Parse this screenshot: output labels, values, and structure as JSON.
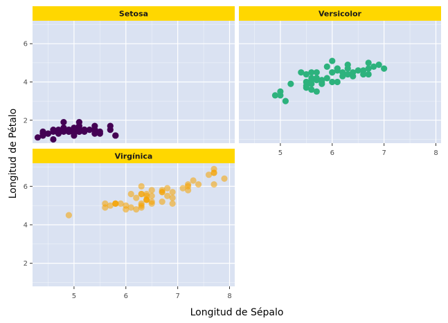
{
  "chart_data": {
    "type": "scatter",
    "xlabel": "Longitud de Sépalo",
    "ylabel": "Longitud de Pétalo",
    "xlim": [
      4.2,
      8.1
    ],
    "ylim": [
      0.8,
      7.2
    ],
    "x_ticks": [
      5,
      6,
      7,
      8
    ],
    "y_ticks": [
      2,
      4,
      6
    ],
    "grid": true,
    "legend": "none",
    "facets": [
      {
        "label": "Setosa",
        "color": "#440154",
        "opacity": 1.0,
        "points": [
          [
            4.3,
            1.1
          ],
          [
            4.4,
            1.3
          ],
          [
            4.4,
            1.4
          ],
          [
            4.5,
            1.3
          ],
          [
            4.6,
            1.4
          ],
          [
            4.6,
            1.0
          ],
          [
            4.7,
            1.5
          ],
          [
            4.7,
            1.3
          ],
          [
            4.8,
            1.6
          ],
          [
            4.8,
            1.4
          ],
          [
            4.8,
            1.9
          ],
          [
            4.8,
            1.6
          ],
          [
            4.9,
            1.4
          ],
          [
            4.9,
            1.5
          ],
          [
            4.9,
            1.5
          ],
          [
            5.0,
            1.4
          ],
          [
            5.0,
            1.5
          ],
          [
            5.0,
            1.2
          ],
          [
            5.0,
            1.3
          ],
          [
            5.0,
            1.6
          ],
          [
            5.0,
            1.4
          ],
          [
            5.0,
            1.3
          ],
          [
            5.0,
            1.6
          ],
          [
            5.1,
            1.4
          ],
          [
            5.1,
            1.5
          ],
          [
            5.1,
            1.5
          ],
          [
            5.1,
            1.4
          ],
          [
            5.1,
            1.7
          ],
          [
            5.1,
            1.9
          ],
          [
            5.1,
            1.5
          ],
          [
            5.2,
            1.5
          ],
          [
            5.2,
            1.4
          ],
          [
            5.2,
            1.5
          ],
          [
            5.3,
            1.5
          ],
          [
            5.4,
            1.7
          ],
          [
            5.4,
            1.5
          ],
          [
            5.4,
            1.3
          ],
          [
            5.4,
            1.5
          ],
          [
            5.4,
            1.5
          ],
          [
            5.5,
            1.4
          ],
          [
            5.5,
            1.3
          ],
          [
            5.7,
            1.5
          ],
          [
            5.7,
            1.7
          ],
          [
            5.8,
            1.2
          ],
          [
            5.8,
            1.2
          ],
          [
            4.6,
            1.5
          ],
          [
            4.9,
            1.4
          ],
          [
            5.2,
            1.5
          ],
          [
            4.5,
            1.3
          ],
          [
            4.4,
            1.2
          ]
        ]
      },
      {
        "label": "Versicolor",
        "color": "#2db27d",
        "opacity": 1.0,
        "points": [
          [
            4.9,
            3.3
          ],
          [
            5.0,
            3.5
          ],
          [
            5.0,
            3.3
          ],
          [
            5.1,
            3.0
          ],
          [
            5.2,
            3.9
          ],
          [
            5.4,
            4.5
          ],
          [
            5.5,
            4.0
          ],
          [
            5.5,
            3.8
          ],
          [
            5.5,
            4.4
          ],
          [
            5.5,
            4.0
          ],
          [
            5.5,
            3.7
          ],
          [
            5.6,
            3.6
          ],
          [
            5.6,
            4.5
          ],
          [
            5.6,
            4.2
          ],
          [
            5.6,
            3.9
          ],
          [
            5.6,
            4.1
          ],
          [
            5.7,
            4.5
          ],
          [
            5.7,
            3.5
          ],
          [
            5.7,
            4.2
          ],
          [
            5.7,
            4.2
          ],
          [
            5.7,
            4.1
          ],
          [
            5.8,
            4.1
          ],
          [
            5.8,
            3.9
          ],
          [
            5.8,
            4.0
          ],
          [
            5.9,
            4.8
          ],
          [
            5.9,
            4.2
          ],
          [
            6.0,
            5.1
          ],
          [
            6.0,
            4.5
          ],
          [
            6.0,
            4.0
          ],
          [
            6.0,
            4.5
          ],
          [
            6.1,
            4.7
          ],
          [
            6.1,
            4.0
          ],
          [
            6.1,
            4.7
          ],
          [
            6.1,
            4.6
          ],
          [
            6.2,
            4.5
          ],
          [
            6.2,
            4.3
          ],
          [
            6.3,
            4.9
          ],
          [
            6.3,
            4.4
          ],
          [
            6.3,
            4.7
          ],
          [
            6.4,
            4.5
          ],
          [
            6.4,
            4.3
          ],
          [
            6.5,
            4.6
          ],
          [
            6.6,
            4.6
          ],
          [
            6.6,
            4.4
          ],
          [
            6.7,
            4.7
          ],
          [
            6.7,
            4.4
          ],
          [
            6.7,
            5.0
          ],
          [
            6.8,
            4.8
          ],
          [
            6.9,
            4.9
          ],
          [
            7.0,
            4.7
          ]
        ]
      },
      {
        "label": "Virgínica",
        "color": "#f5a300",
        "opacity": 0.55,
        "points": [
          [
            4.9,
            4.5
          ],
          [
            5.6,
            4.9
          ],
          [
            5.7,
            5.0
          ],
          [
            5.8,
            5.1
          ],
          [
            5.8,
            5.1
          ],
          [
            5.8,
            5.1
          ],
          [
            5.9,
            5.1
          ],
          [
            6.0,
            5.0
          ],
          [
            6.0,
            4.8
          ],
          [
            6.1,
            5.6
          ],
          [
            6.1,
            4.9
          ],
          [
            6.2,
            4.8
          ],
          [
            6.2,
            5.4
          ],
          [
            6.3,
            6.0
          ],
          [
            6.3,
            5.1
          ],
          [
            6.3,
            5.6
          ],
          [
            6.3,
            5.6
          ],
          [
            6.3,
            4.9
          ],
          [
            6.3,
            5.0
          ],
          [
            6.4,
            5.5
          ],
          [
            6.4,
            5.3
          ],
          [
            6.4,
            5.6
          ],
          [
            6.4,
            5.3
          ],
          [
            6.5,
            5.8
          ],
          [
            6.5,
            5.5
          ],
          [
            6.5,
            5.2
          ],
          [
            6.5,
            5.1
          ],
          [
            6.7,
            5.7
          ],
          [
            6.7,
            5.8
          ],
          [
            6.7,
            5.7
          ],
          [
            6.7,
            5.2
          ],
          [
            6.8,
            5.5
          ],
          [
            6.8,
            5.9
          ],
          [
            6.9,
            5.4
          ],
          [
            6.9,
            5.7
          ],
          [
            6.9,
            5.1
          ],
          [
            7.1,
            5.9
          ],
          [
            7.2,
            6.0
          ],
          [
            7.2,
            5.8
          ],
          [
            7.2,
            6.1
          ],
          [
            7.3,
            6.3
          ],
          [
            7.4,
            6.1
          ],
          [
            7.6,
            6.6
          ],
          [
            7.7,
            6.7
          ],
          [
            7.7,
            6.9
          ],
          [
            7.7,
            6.7
          ],
          [
            7.7,
            6.1
          ],
          [
            7.9,
            6.4
          ],
          [
            5.6,
            5.1
          ],
          [
            6.4,
            5.3
          ]
        ]
      }
    ]
  }
}
